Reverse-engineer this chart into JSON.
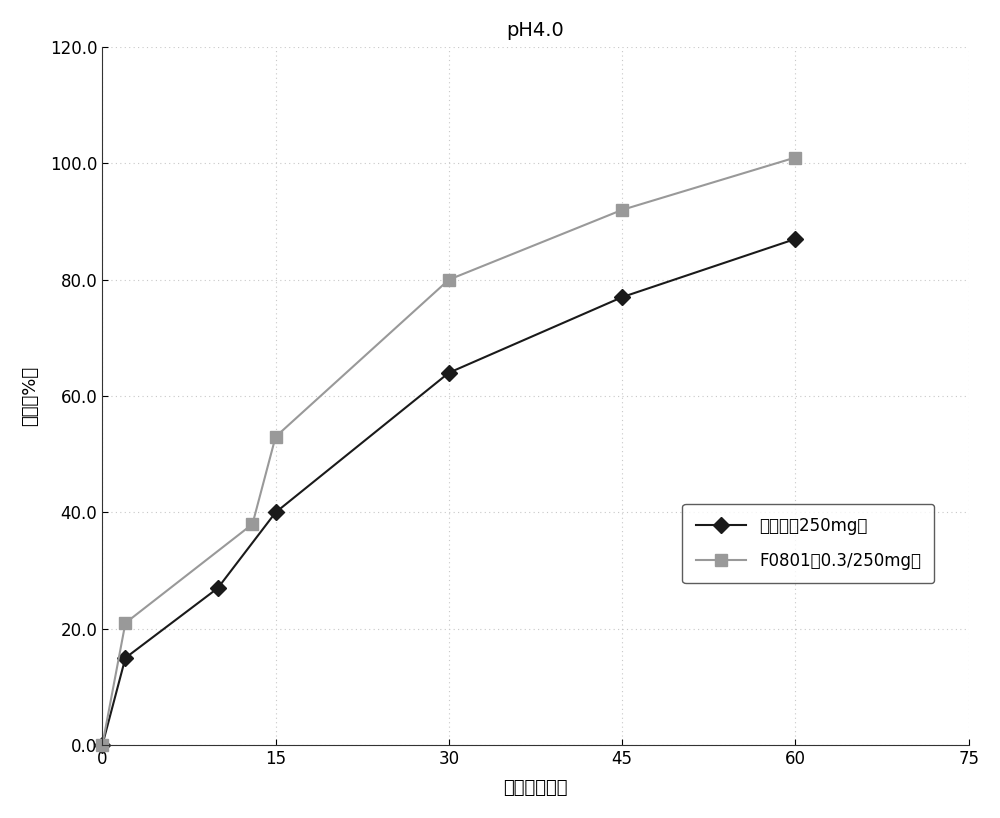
{
  "title": "pH4.0",
  "xlabel": "时间（分钟）",
  "ylabel": "溶解（%）",
  "xlim": [
    0,
    75
  ],
  "ylim": [
    0,
    120
  ],
  "xticks": [
    0,
    15,
    30,
    45,
    60,
    75
  ],
  "yticks": [
    0.0,
    20.0,
    40.0,
    60.0,
    80.0,
    100.0,
    120.0
  ],
  "series": [
    {
      "label": "格华止（250mg）",
      "x": [
        0,
        2,
        10,
        15,
        30,
        45,
        60
      ],
      "y": [
        0,
        15,
        27,
        40,
        64,
        77,
        87
      ],
      "color": "#1a1a1a",
      "marker": "D",
      "markersize": 8,
      "linewidth": 1.5
    },
    {
      "label": "F0801（0.3/250mg）",
      "x": [
        0,
        2,
        13,
        15,
        30,
        45,
        60
      ],
      "y": [
        0,
        21,
        38,
        53,
        80,
        92,
        101
      ],
      "color": "#999999",
      "marker": "s",
      "markersize": 8,
      "linewidth": 1.5
    }
  ],
  "grid_color": "#c8c8c8",
  "background_color": "#ffffff",
  "title_fontsize": 14,
  "label_fontsize": 13,
  "tick_fontsize": 12,
  "legend_fontsize": 12
}
